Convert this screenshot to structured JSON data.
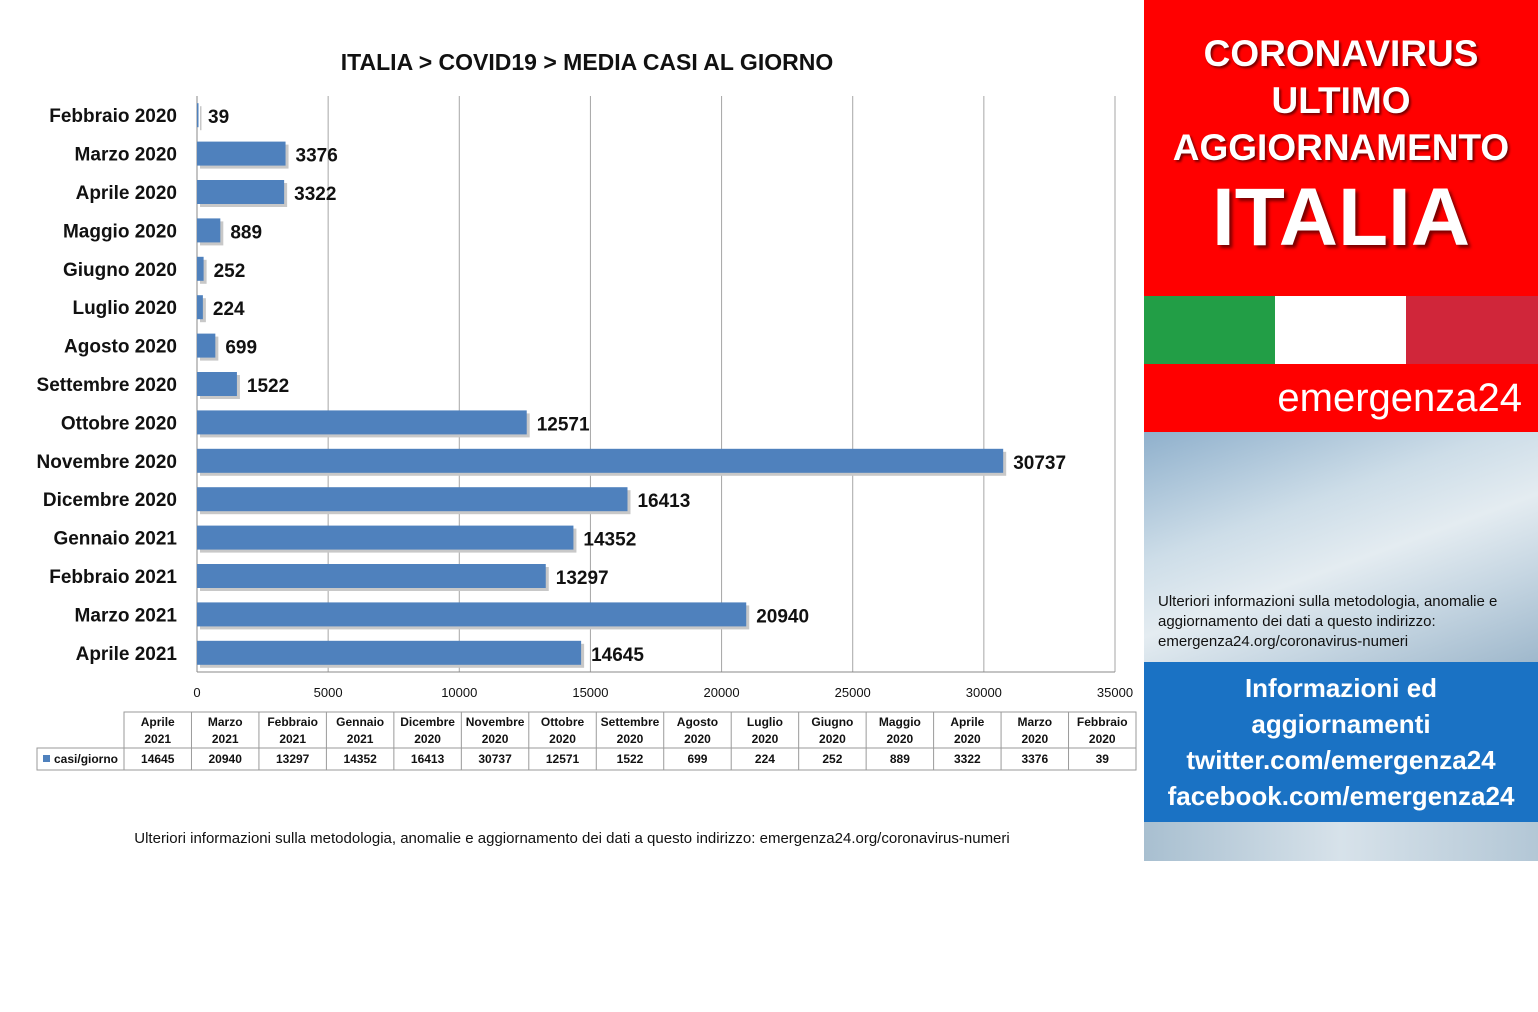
{
  "chart_data": {
    "type": "bar",
    "orientation": "horizontal",
    "title": "ITALIA >  COVID19 > MEDIA CASI AL GIORNO",
    "categories": [
      "Febbraio 2020",
      "Marzo 2020",
      "Aprile 2020",
      "Maggio 2020",
      "Giugno 2020",
      "Luglio 2020",
      "Agosto 2020",
      "Settembre 2020",
      "Ottobre 2020",
      "Novembre 2020",
      "Dicembre 2020",
      "Gennaio 2021",
      "Febbraio 2021",
      "Marzo 2021",
      "Aprile 2021"
    ],
    "series": [
      {
        "name": "casi/giorno",
        "values": [
          39,
          3376,
          3322,
          889,
          252,
          224,
          699,
          1522,
          12571,
          30737,
          16413,
          14352,
          13297,
          20940,
          14645
        ]
      }
    ],
    "xlim": [
      0,
      35000
    ],
    "xticks": [
      "0",
      "5000",
      "10000",
      "15000",
      "20000",
      "25000",
      "30000",
      "35000"
    ],
    "grid": "vertical",
    "bar_color": "#4f81bd",
    "data_table": {
      "headers": [
        [
          "Aprile",
          "2021"
        ],
        [
          "Marzo",
          "2021"
        ],
        [
          "Febbraio",
          "2021"
        ],
        [
          "Gennaio",
          "2021"
        ],
        [
          "Dicembre",
          "2020"
        ],
        [
          "Novembre",
          "2020"
        ],
        [
          "Ottobre",
          "2020"
        ],
        [
          "Settembre",
          "2020"
        ],
        [
          "Agosto",
          "2020"
        ],
        [
          "Luglio",
          "2020"
        ],
        [
          "Giugno",
          "2020"
        ],
        [
          "Maggio",
          "2020"
        ],
        [
          "Aprile",
          "2020"
        ],
        [
          "Marzo",
          "2020"
        ],
        [
          "Febbraio",
          "2020"
        ]
      ],
      "row_label": "casi/giorno",
      "values": [
        "14645",
        "20940",
        "13297",
        "14352",
        "16413",
        "30737",
        "12571",
        "1522",
        "699",
        "224",
        "252",
        "889",
        "3322",
        "3376",
        "39"
      ]
    }
  },
  "footnote": "Ulteriori informazioni sulla metodologia, anomalie e aggiornamento dei dati a questo indirizzo: emergenza24.org/coronavirus-numeri",
  "side": {
    "headline": [
      "CORONAVIRUS",
      "ULTIMO",
      "AGGIORNAMENTO"
    ],
    "country": "ITALIA",
    "brand": "emergenza24",
    "handle": "@emergenza24",
    "info_text": "Ulteriori informazioni sulla metodologia, anomalie e aggiornamento dei dati a questo indirizzo: emergenza24.org/coronavirus-numeri",
    "social": [
      "Informazioni ed",
      "aggiornamenti",
      "twitter.com/emergenza24",
      "facebook.com/emergenza24"
    ],
    "colors": {
      "red": "#ff0000",
      "blue": "#1a72c4",
      "flag_green": "#229e46",
      "flag_white": "#ffffff",
      "flag_red": "#d0263a"
    }
  }
}
